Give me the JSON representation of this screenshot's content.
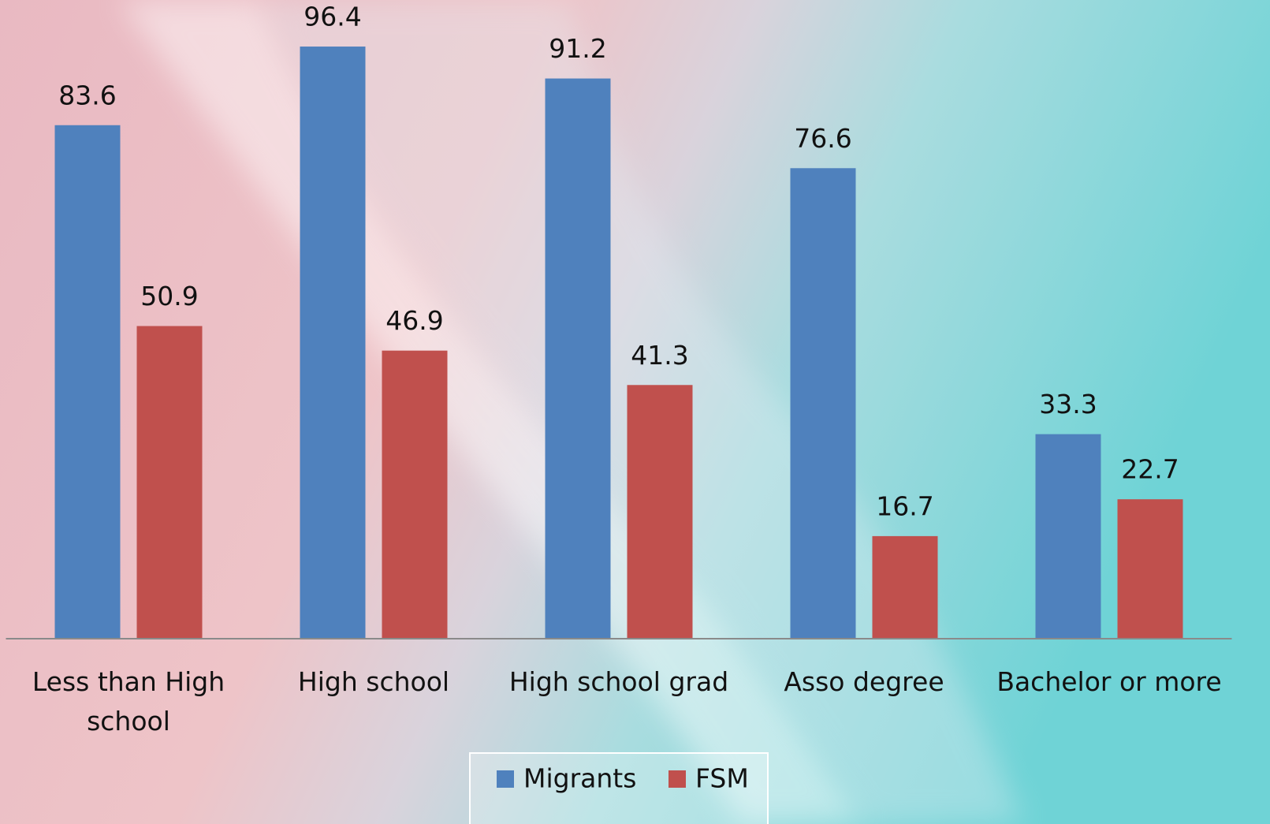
{
  "chart_data": {
    "type": "bar",
    "categories": [
      "Less than High school",
      "High school",
      "High school grad",
      "Asso degree",
      "Bachelor or more"
    ],
    "series": [
      {
        "name": "Migrants",
        "color": "#4f81bd",
        "values": [
          83.6,
          96.4,
          91.2,
          76.6,
          33.3
        ]
      },
      {
        "name": "FSM",
        "color": "#c0504d",
        "values": [
          50.9,
          46.9,
          41.3,
          16.7,
          22.7
        ]
      }
    ],
    "ylim": [
      0,
      100
    ],
    "legend": "bottom"
  }
}
